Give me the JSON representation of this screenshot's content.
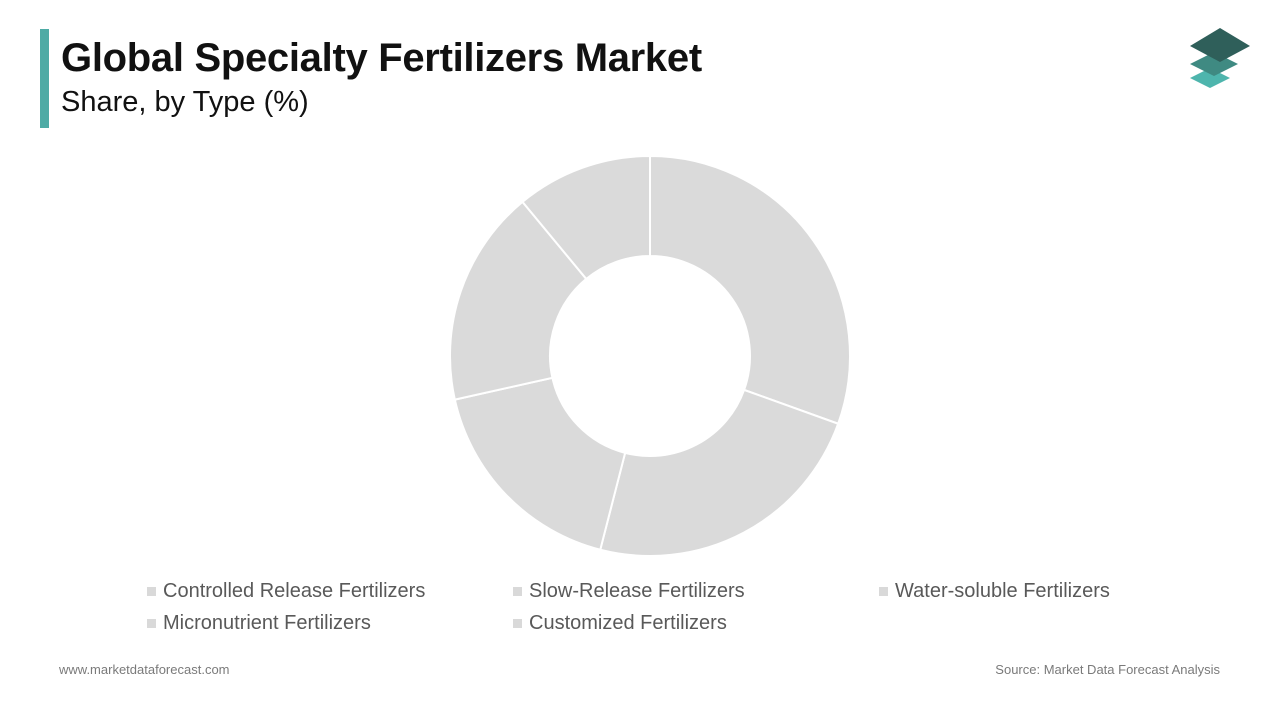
{
  "header": {
    "title": "Global Specialty Fertilizers Market",
    "subtitle": "Share, by Type (%)"
  },
  "logo": {
    "icon": "stacked-layers-logo-icon",
    "colors": [
      "#2f5f5a",
      "#3f8a82",
      "#4eb5ad"
    ]
  },
  "chart_data": {
    "type": "pie",
    "variant": "donut",
    "title": "Global Specialty Fertilizers Market",
    "subtitle": "Share, by Type (%)",
    "categories": [
      "Controlled Release Fertilizers",
      "Slow-Release Fertilizers",
      "Water-soluble Fertilizers",
      "Micronutrient Fertilizers",
      "Customized Fertilizers"
    ],
    "values": [
      30.5,
      23.5,
      17.5,
      17.5,
      11.0
    ],
    "slice_color": "#dadada",
    "slice_border_color": "#ffffff",
    "legend_swatch_color": "#d9d9d9",
    "start_angle_deg": 0,
    "direction": "clockwise",
    "legend_position": "bottom"
  },
  "footer": {
    "website": "www.marketdataforecast.com",
    "source": "Source: Market Data Forecast Analysis"
  }
}
